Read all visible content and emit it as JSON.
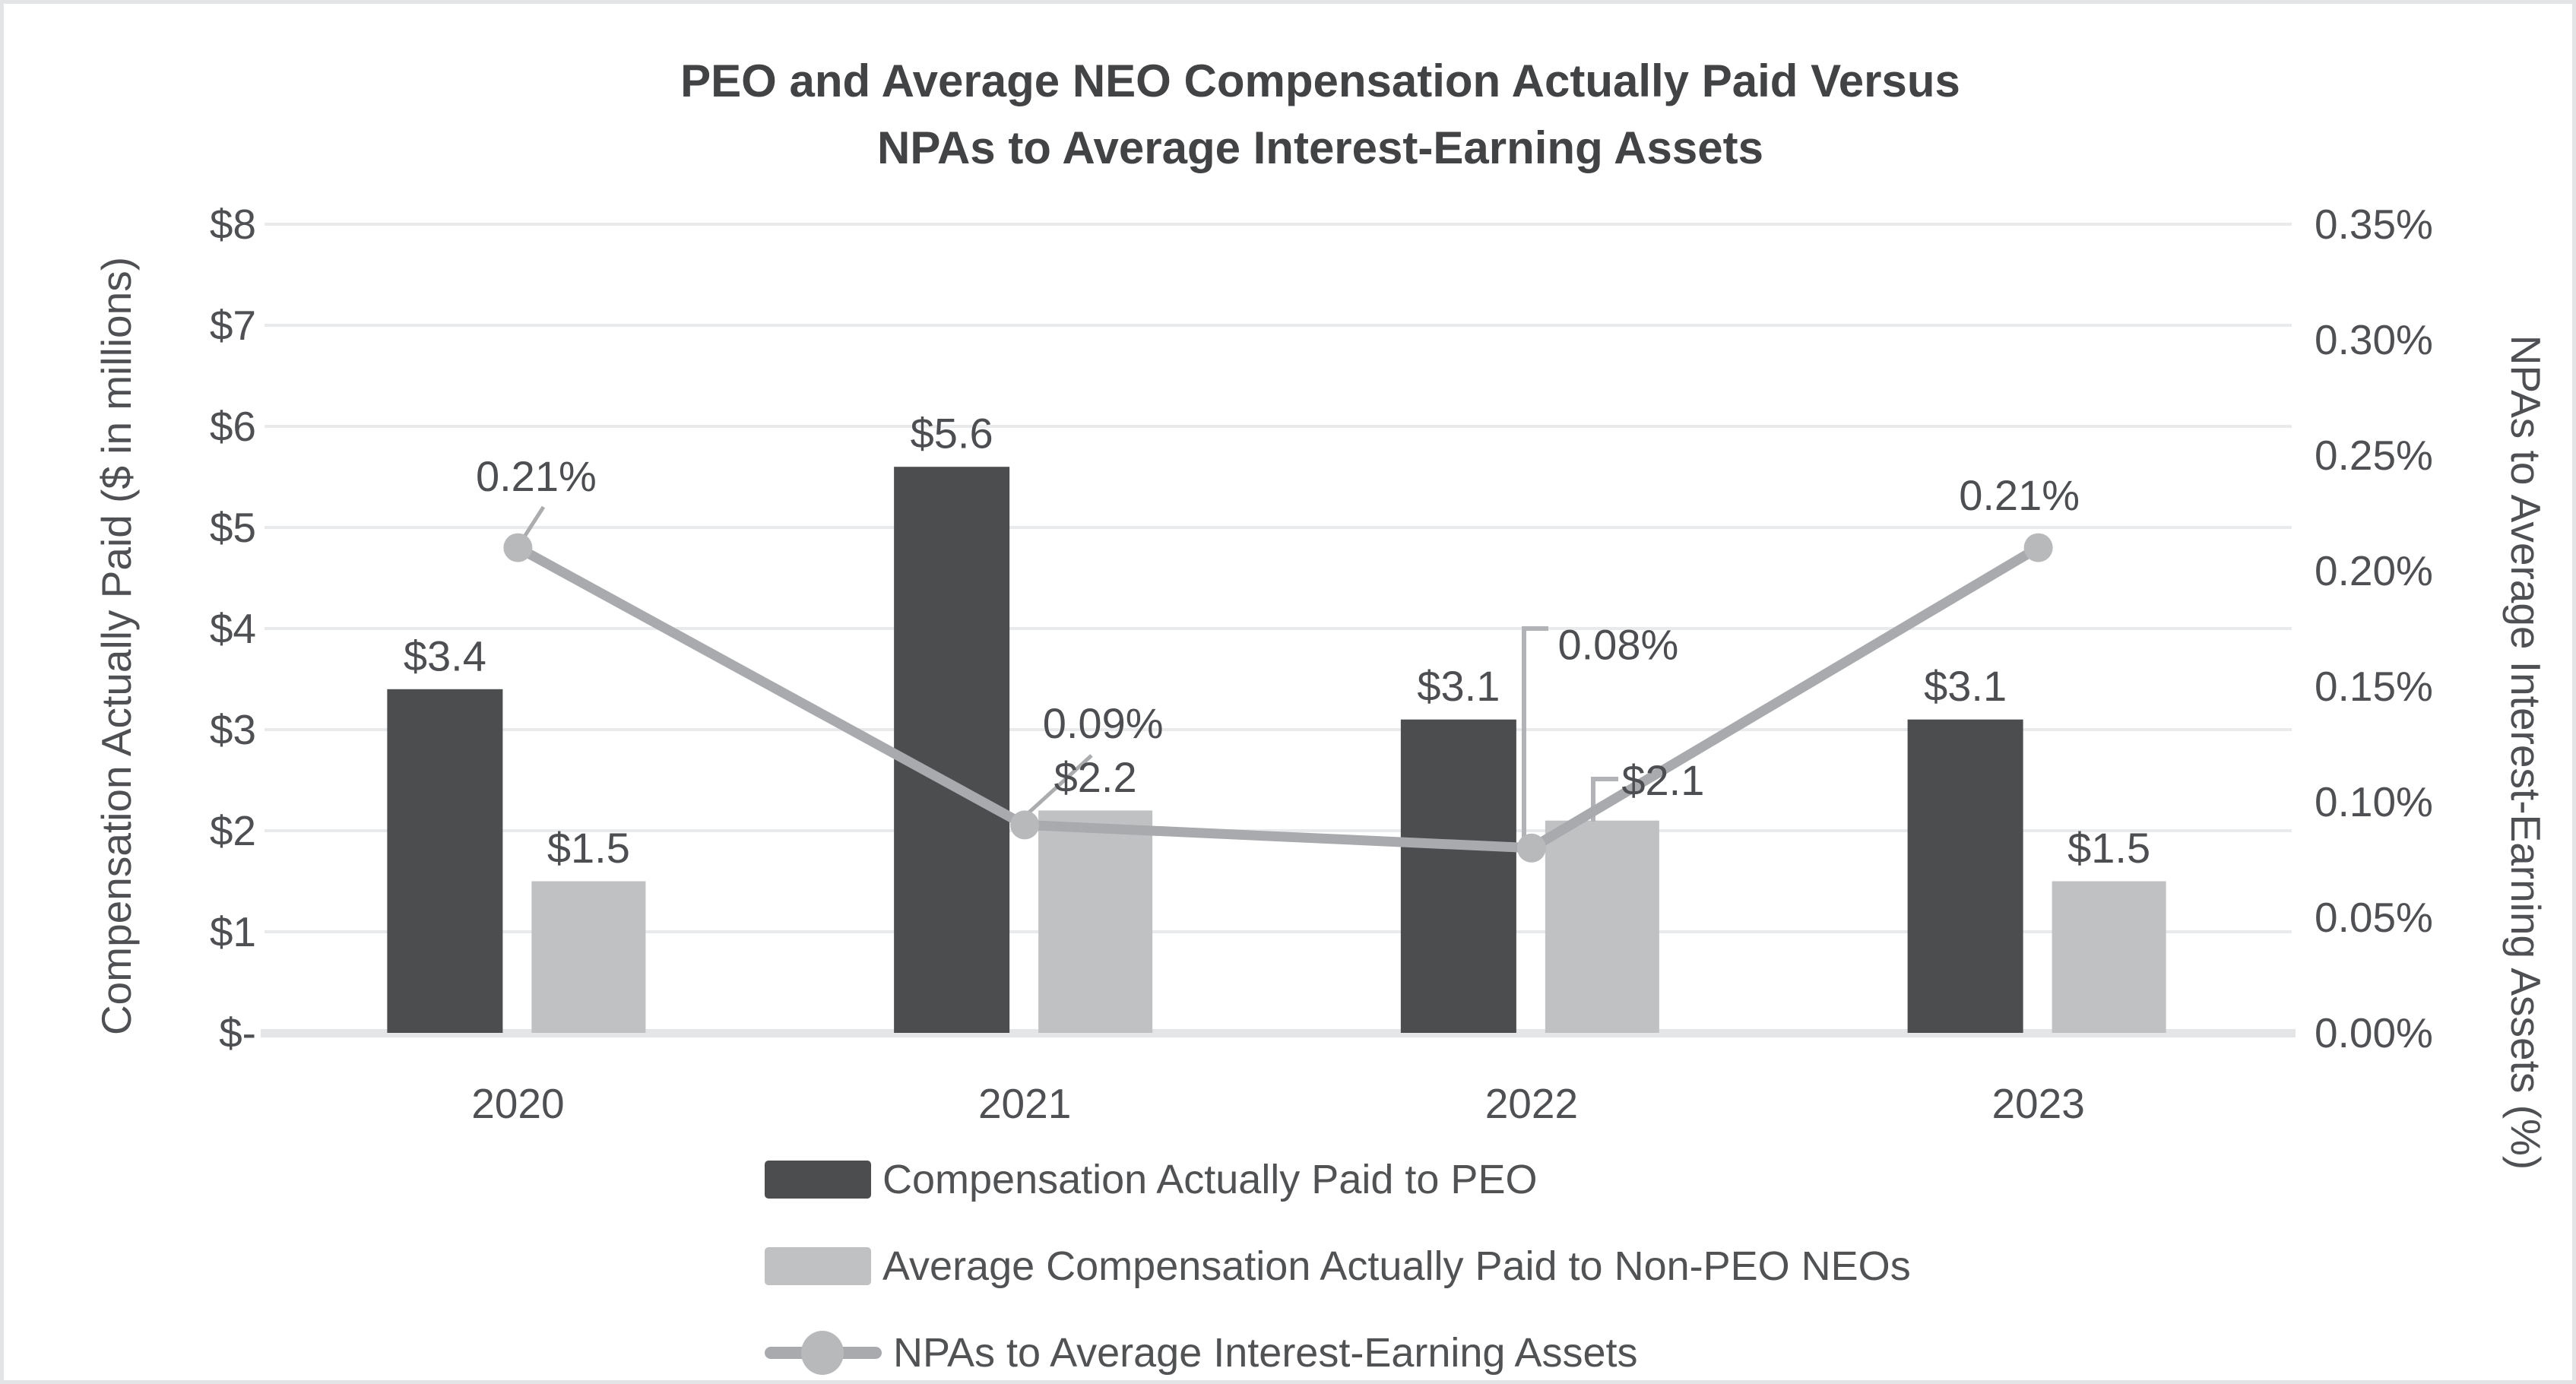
{
  "canvas": {
    "background": "#ffffff",
    "border_color": "#e2e4e6"
  },
  "title": {
    "line1": "PEO and Average NEO Compensation Actually Paid Versus",
    "line2": "NPAs to Average Interest-Earning Assets",
    "color": "#414345"
  },
  "axes": {
    "left": {
      "title": "Compensation Actually Paid ($ in millions)",
      "tick_labels": [
        "$8",
        "$7",
        "$6",
        "$5",
        "$4",
        "$3",
        "$2",
        "$1",
        "$-"
      ]
    },
    "right": {
      "title": "NPAs to Average Interest-Earning Assets (%)",
      "tick_labels": [
        "0.35%",
        "0.30%",
        "0.25%",
        "0.20%",
        "0.15%",
        "0.10%",
        "0.05%",
        "0.00%"
      ]
    },
    "x": {
      "tick_labels": [
        "2020",
        "2021",
        "2022",
        "2023"
      ]
    }
  },
  "legend": {
    "position": "bottom-left",
    "items": [
      {
        "label": "Compensation Actually Paid to PEO",
        "marker": "dark-square"
      },
      {
        "label": "Average Compensation Actually Paid to Non-PEO NEOs",
        "marker": "light-square"
      },
      {
        "label": "NPAs to Average Interest-Earning Assets",
        "marker": "line-with-dot"
      }
    ]
  },
  "chart_data": {
    "type": "combo-bar-line",
    "title": "PEO and Average NEO Compensation Actually Paid Versus NPAs to Average Interest-Earning Assets",
    "categories": [
      "2020",
      "2021",
      "2022",
      "2023"
    ],
    "series": [
      {
        "name": "Compensation Actually Paid to PEO",
        "type": "bar",
        "axis": "left",
        "color": "#4b4d4f",
        "values": [
          3.4,
          5.6,
          3.1,
          3.1
        ],
        "data_labels": [
          "$3.4",
          "$5.6",
          "$3.1",
          "$3.1"
        ]
      },
      {
        "name": "Average Compensation Actually Paid to Non-PEO NEOs",
        "type": "bar",
        "axis": "left",
        "color": "#bfc1c3",
        "values": [
          1.5,
          2.2,
          2.1,
          1.5
        ],
        "data_labels": [
          "$1.5",
          "$2.2",
          "$2.1",
          "$1.5"
        ]
      },
      {
        "name": "NPAs to Average Interest-Earning Assets",
        "type": "line",
        "axis": "right",
        "color": "#a8aaad",
        "marker_color": "#b7b9bb",
        "values_percent": [
          0.21,
          0.09,
          0.08,
          0.21
        ],
        "data_labels": [
          "0.21%",
          "0.09%",
          "0.08%",
          "0.21%"
        ]
      }
    ],
    "xlabel": "",
    "left_ylabel": "Compensation Actually Paid ($ in millions)",
    "right_ylabel": "NPAs to Average Interest-Earning Assets (%)",
    "left_ylim": [
      0,
      8
    ],
    "left_tick_step": 1,
    "right_ylim_percent": [
      0,
      0.35
    ],
    "right_tick_step_percent": 0.05,
    "gridlines": "horizontal",
    "legend_position": "bottom-left",
    "styling": {
      "gridline_color": "#e9eaeb",
      "axis_line_color": "#e4e5e7",
      "tick_label_color": "#4e5053",
      "data_label_color": "#4c4e51",
      "leader_line_color": "#b1b3b6"
    }
  }
}
